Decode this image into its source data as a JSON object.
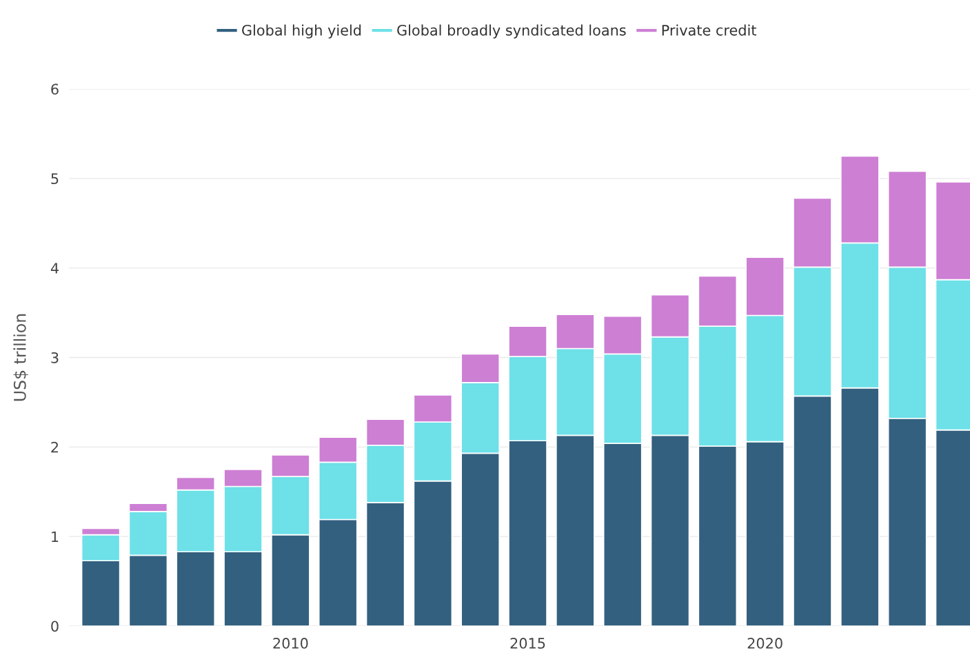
{
  "chart_data": {
    "type": "bar",
    "stacked": true,
    "ylabel": "US$ trillion",
    "x": [
      2006,
      2007,
      2008,
      2009,
      2010,
      2011,
      2012,
      2013,
      2014,
      2015,
      2016,
      2017,
      2018,
      2019,
      2020,
      2021,
      2022,
      2023,
      2024
    ],
    "xlim": [
      2005.33,
      2024.32
    ],
    "xticks": [
      2010,
      2015,
      2020
    ],
    "ylim": [
      0,
      6
    ],
    "yticks": [
      0,
      1,
      2,
      3,
      4,
      5,
      6
    ],
    "grid": "y",
    "legend": "top",
    "series": [
      {
        "name": "Global high yield",
        "color": "#33607f",
        "values": [
          0.73,
          0.79,
          0.83,
          0.83,
          1.02,
          1.19,
          1.38,
          1.62,
          1.93,
          2.07,
          2.13,
          2.04,
          2.13,
          2.01,
          2.06,
          2.57,
          2.66,
          2.32,
          2.19
        ]
      },
      {
        "name": "Global broadly syndicated loans",
        "color": "#6ee0e8",
        "values": [
          0.29,
          0.49,
          0.69,
          0.73,
          0.65,
          0.64,
          0.64,
          0.66,
          0.79,
          0.94,
          0.97,
          1.0,
          1.1,
          1.34,
          1.41,
          1.44,
          1.62,
          1.69,
          1.68
        ]
      },
      {
        "name": "Private credit",
        "color": "#cd7fd4",
        "values": [
          0.07,
          0.09,
          0.14,
          0.19,
          0.24,
          0.28,
          0.29,
          0.3,
          0.32,
          0.34,
          0.38,
          0.42,
          0.47,
          0.56,
          0.65,
          0.77,
          0.97,
          1.07,
          1.09
        ]
      }
    ]
  }
}
